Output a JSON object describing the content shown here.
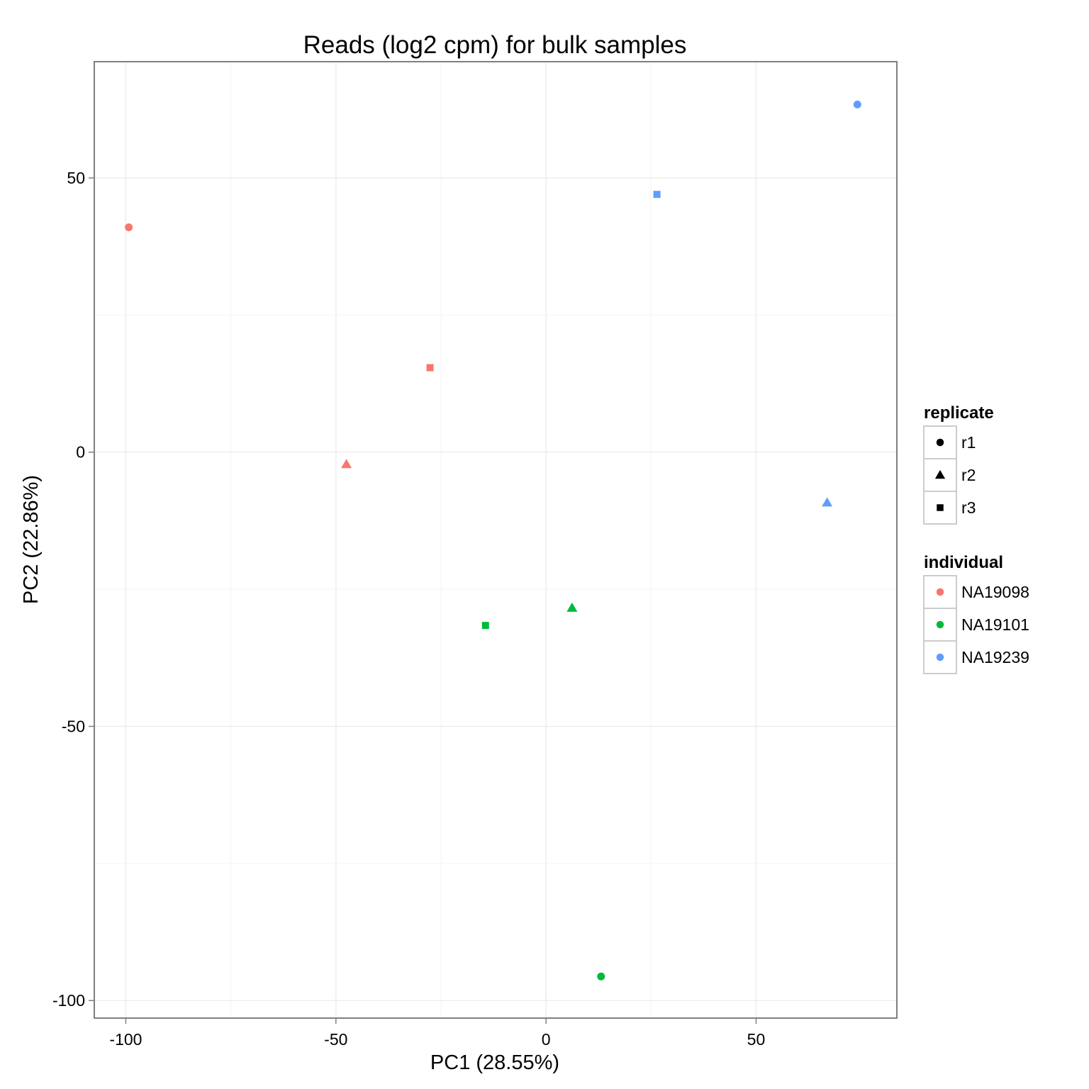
{
  "chart_data": {
    "type": "scatter",
    "title": "Reads (log2 cpm) for bulk samples",
    "xlabel": "PC1 (28.55%)",
    "ylabel": "PC2 (22.86%)",
    "xlim": [
      -107.5,
      83.5
    ],
    "ylim": [
      -103.2,
      71.2
    ],
    "x_ticks": [
      -100,
      -50,
      0,
      50
    ],
    "y_ticks": [
      -100,
      -50,
      0,
      50
    ],
    "grid": true,
    "legend_position": "right",
    "legends": [
      {
        "title": "replicate",
        "entries": [
          {
            "label": "r1",
            "shape": "circle"
          },
          {
            "label": "r2",
            "shape": "triangle"
          },
          {
            "label": "r3",
            "shape": "square"
          }
        ]
      },
      {
        "title": "individual",
        "entries": [
          {
            "label": "NA19098",
            "color": "#F8766D"
          },
          {
            "label": "NA19101",
            "color": "#00BA38"
          },
          {
            "label": "NA19239",
            "color": "#619CFF"
          }
        ]
      }
    ],
    "points": [
      {
        "individual": "NA19098",
        "replicate": "r1",
        "x": -99.3,
        "y": 41.0
      },
      {
        "individual": "NA19098",
        "replicate": "r2",
        "x": -47.5,
        "y": -2.2
      },
      {
        "individual": "NA19098",
        "replicate": "r3",
        "x": -27.6,
        "y": 15.4
      },
      {
        "individual": "NA19101",
        "replicate": "r1",
        "x": 13.1,
        "y": -95.6
      },
      {
        "individual": "NA19101",
        "replicate": "r2",
        "x": 6.2,
        "y": -28.4
      },
      {
        "individual": "NA19101",
        "replicate": "r3",
        "x": -14.4,
        "y": -31.6
      },
      {
        "individual": "NA19239",
        "replicate": "r1",
        "x": 74.1,
        "y": 63.4
      },
      {
        "individual": "NA19239",
        "replicate": "r2",
        "x": 66.9,
        "y": -9.2
      },
      {
        "individual": "NA19239",
        "replicate": "r3",
        "x": 26.4,
        "y": 47.0
      }
    ]
  }
}
